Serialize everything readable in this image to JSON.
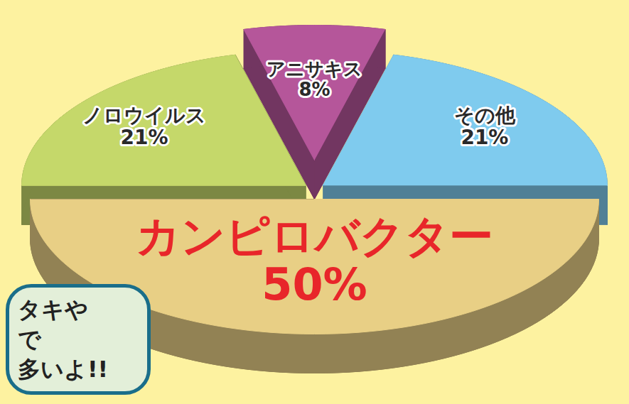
{
  "chart_data": {
    "type": "pie",
    "categories": [
      "カンピロバクター",
      "ノロウイルス",
      "アニサキス",
      "その他"
    ],
    "values": [
      50,
      21,
      8,
      21
    ],
    "value_labels": [
      "50%",
      "21%",
      "8%",
      "21%"
    ],
    "colors": [
      "#e8cf85",
      "#c5d86a",
      "#b5569a",
      "#7fcbee"
    ],
    "data_labels": true,
    "annotations": [
      "タキや",
      "で",
      "多いよ!!"
    ]
  }
}
